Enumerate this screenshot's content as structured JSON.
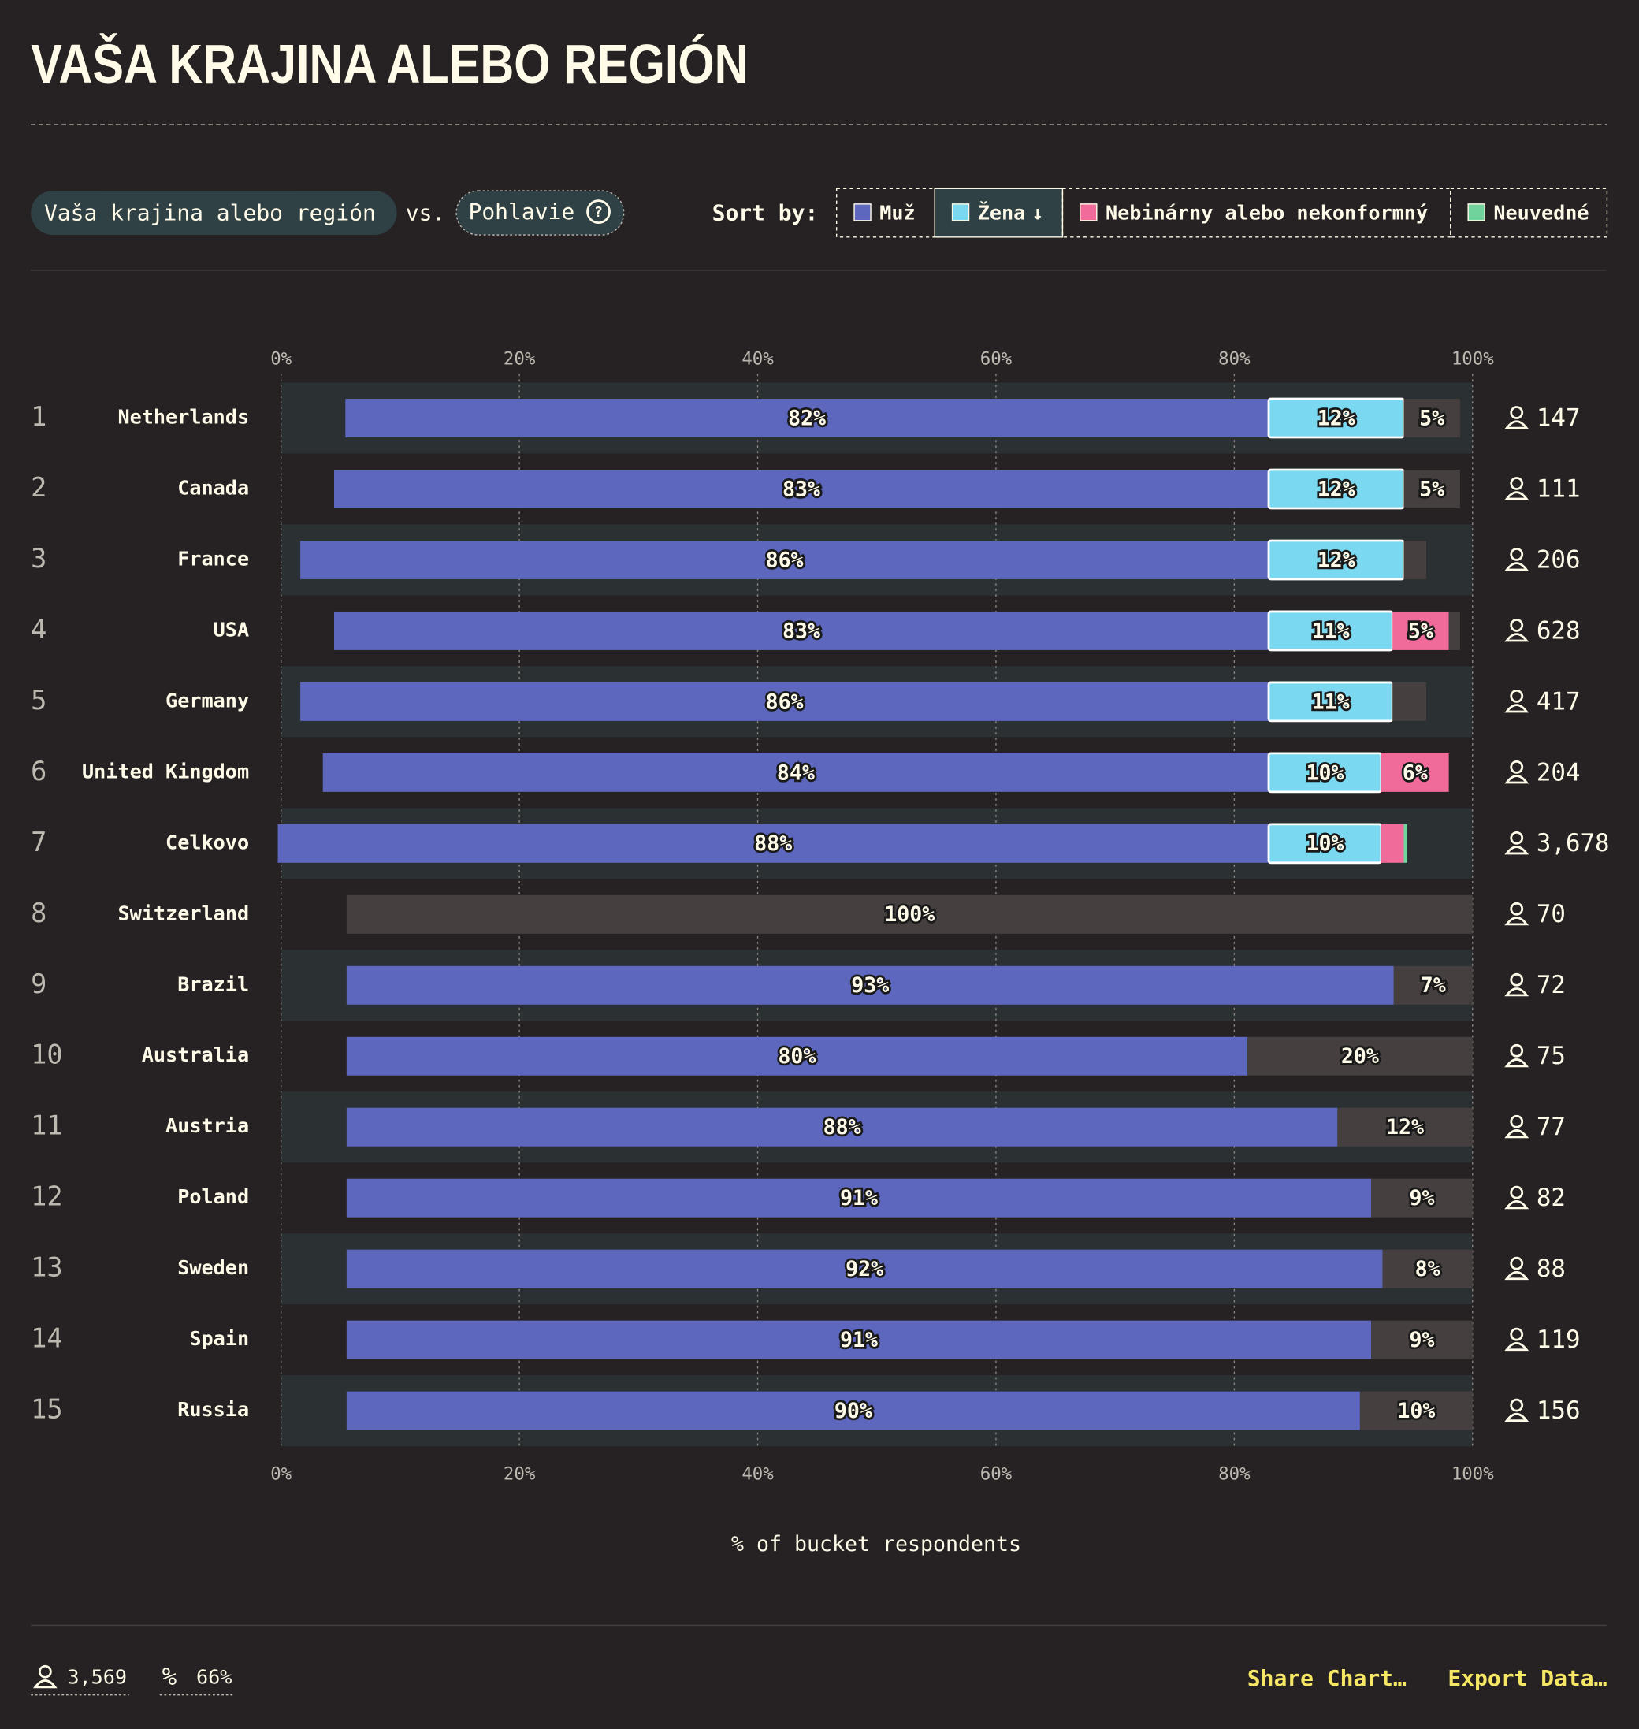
{
  "header": {
    "title": "VAŠA KRAJINA ALEBO REGIÓN",
    "field_a": "Vaša krajina alebo región",
    "vs": "vs.",
    "field_b": "Pohlavie",
    "sort_by": "Sort by:",
    "sort_indicator": "↓"
  },
  "chart_data": {
    "type": "stacked-bar-horizontal",
    "categories": [
      "Netherlands",
      "Canada",
      "France",
      "USA",
      "Germany",
      "United Kingdom",
      "Celkovo",
      "Switzerland",
      "Brazil",
      "Australia",
      "Austria",
      "Poland",
      "Sweden",
      "Spain",
      "Russia"
    ],
    "ranks": [
      1,
      2,
      3,
      4,
      5,
      6,
      7,
      8,
      9,
      10,
      11,
      12,
      13,
      14,
      15
    ],
    "counts": [
      147,
      111,
      206,
      628,
      417,
      204,
      {
        "value": 3678,
        "label": "3,678"
      },
      70,
      72,
      75,
      77,
      82,
      88,
      119,
      156
    ],
    "series": [
      {
        "name": "Muž",
        "color": "#5c67bd",
        "values": [
          82,
          83,
          86,
          83,
          86,
          84,
          88,
          null,
          93,
          80,
          88,
          91,
          92,
          91,
          90
        ],
        "value_labels": [
          "82%",
          "83%",
          "86%",
          "83%",
          "86%",
          "84%",
          "88%",
          null,
          "93%",
          "80%",
          "88%",
          "91%",
          "92%",
          "91%",
          "90%"
        ]
      },
      {
        "name": "Žena",
        "color": "#7ad8f0",
        "values": [
          12,
          12,
          12,
          11,
          11,
          10,
          10,
          null,
          null,
          null,
          null,
          null,
          null,
          null,
          null
        ],
        "value_labels": [
          "12%",
          "12%",
          "12%",
          "11%",
          "11%",
          "10%",
          "10%",
          null,
          null,
          null,
          null,
          null,
          null,
          null,
          null
        ]
      },
      {
        "name": "Nebinárny alebo nekonformný",
        "color": "#f06b9a",
        "values": [
          null,
          null,
          null,
          5,
          null,
          6,
          2,
          null,
          null,
          null,
          null,
          null,
          null,
          null,
          null
        ],
        "value_labels": [
          null,
          null,
          null,
          "5%",
          null,
          "6%",
          null,
          null,
          null,
          null,
          null,
          null,
          null,
          null,
          null
        ]
      },
      {
        "name": "Neuvedné",
        "color": "#6fd39b",
        "values": [
          null,
          null,
          null,
          null,
          null,
          null,
          0.3,
          null,
          null,
          null,
          null,
          null,
          null,
          null,
          null
        ],
        "value_labels": [
          null,
          null,
          null,
          null,
          null,
          null,
          null,
          null,
          null,
          null,
          null,
          null,
          null,
          null,
          null
        ]
      },
      {
        "color": "#45403f",
        "values": [
          5,
          5,
          2,
          1,
          3,
          null,
          null,
          100,
          7,
          20,
          12,
          9,
          8,
          9,
          10
        ],
        "value_labels": [
          "5%",
          "5%",
          null,
          null,
          null,
          null,
          null,
          "100%",
          "7%",
          "20%",
          "12%",
          "9%",
          "8%",
          "9%",
          "10%"
        ]
      }
    ],
    "xlim": [
      0,
      100
    ],
    "xticks": [
      {
        "value": 0,
        "label": "0%"
      },
      {
        "value": 20,
        "label": "20%"
      },
      {
        "value": 40,
        "label": "40%"
      },
      {
        "value": 60,
        "label": "60%"
      },
      {
        "value": 80,
        "label": "80%"
      },
      {
        "value": 100,
        "label": "100%"
      }
    ],
    "xlabel": "% of bucket respondents",
    "grid": true
  },
  "footer": {
    "respondents": "3,569",
    "share": "66%",
    "share_chart": "Share Chart…",
    "export_data": "Export Data…"
  }
}
